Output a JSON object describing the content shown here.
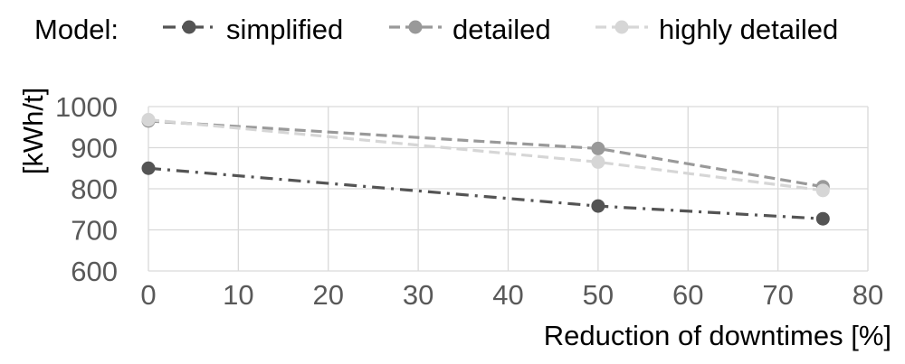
{
  "chart_data": {
    "type": "line",
    "legend": {
      "title": "Model:",
      "placement": "top"
    },
    "xlabel": "Reduction of downtimes [%]",
    "ylabel": "[kWh/t]",
    "xlim": [
      0,
      80
    ],
    "ylim": [
      600,
      1000
    ],
    "xticks": [
      0,
      10,
      20,
      30,
      40,
      50,
      60,
      70,
      80
    ],
    "yticks": [
      600,
      700,
      800,
      900,
      1000
    ],
    "x": [
      0,
      50,
      75
    ],
    "grid": true,
    "series": [
      {
        "name": "simplified",
        "values": [
          850,
          758,
          727
        ],
        "color": "#545454",
        "dash": "dashdot"
      },
      {
        "name": "detailed",
        "values": [
          965,
          898,
          805
        ],
        "color": "#999999",
        "dash": "dash"
      },
      {
        "name": "highly detailed",
        "values": [
          968,
          865,
          796
        ],
        "color": "#d6d6d6",
        "dash": "dash"
      }
    ]
  }
}
